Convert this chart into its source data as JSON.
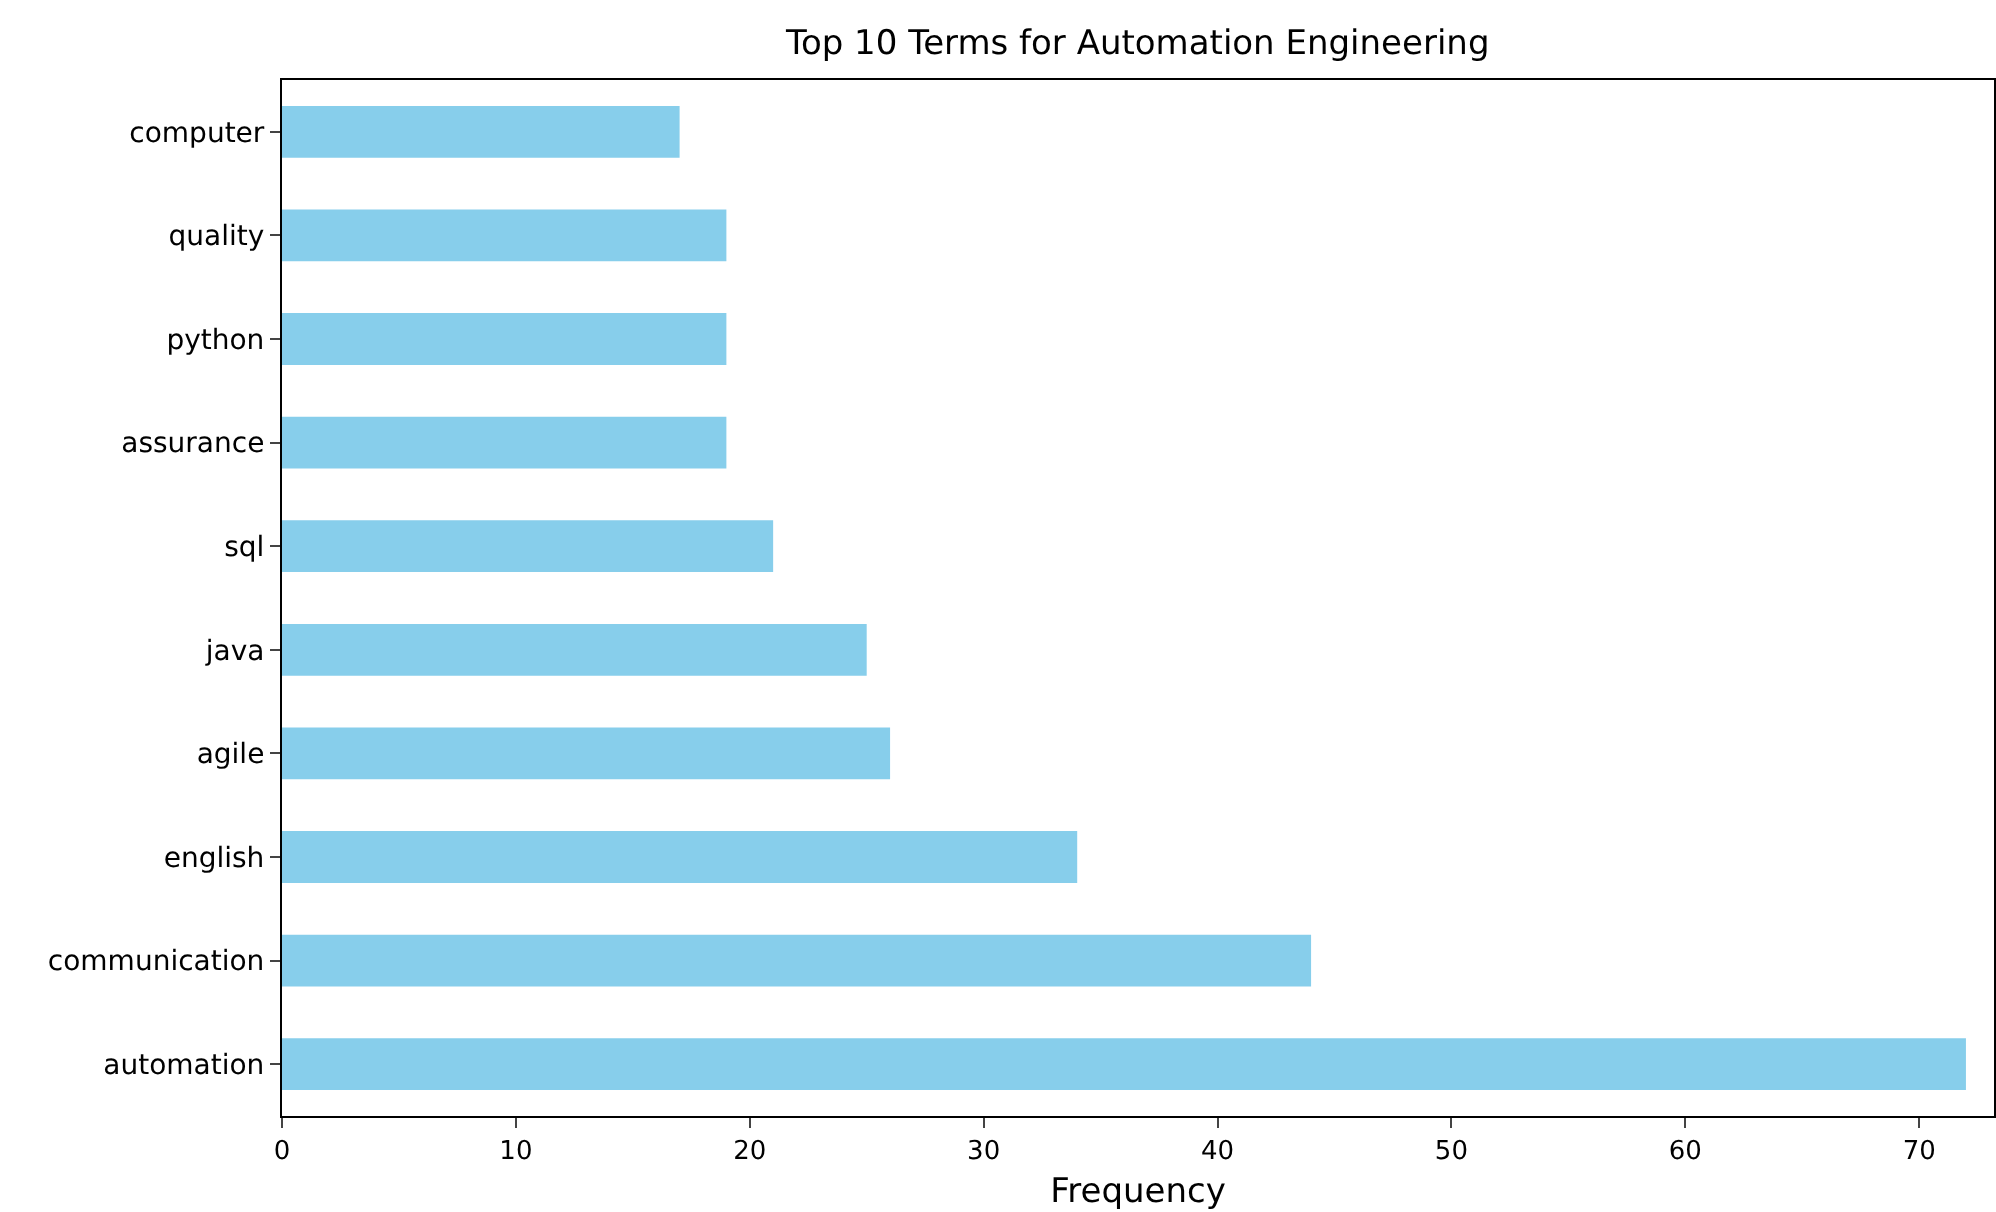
{
  "chart_data": {
    "type": "bar",
    "orientation": "horizontal",
    "title": "Top 10 Terms for Automation Engineering",
    "xlabel": "Frequency",
    "categories": [
      "computer",
      "quality",
      "python",
      "assurance",
      "sql",
      "java",
      "agile",
      "english",
      "communication",
      "automation"
    ],
    "values": [
      17,
      19,
      19,
      19,
      21,
      25,
      26,
      34,
      44,
      72
    ],
    "color": "#87ceeb",
    "xlim": [
      0,
      73.2
    ],
    "xticks": [
      0,
      10,
      20,
      30,
      40,
      50,
      60,
      70
    ]
  }
}
